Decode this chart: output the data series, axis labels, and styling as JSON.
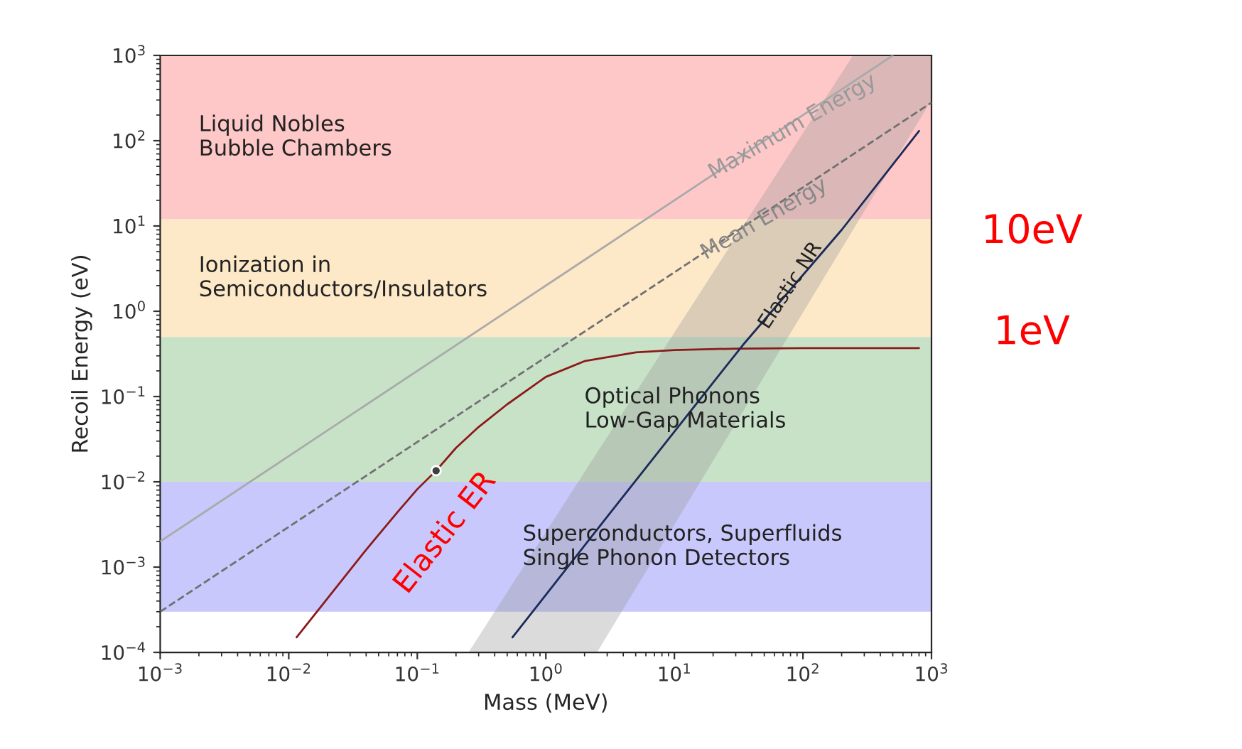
{
  "chart_data": {
    "type": "line",
    "xlabel": "Mass (MeV)",
    "ylabel": "Recoil Energy (eV)",
    "log": "xy",
    "xlim": [
      0.001,
      1000
    ],
    "ylim": [
      0.0001,
      1000
    ],
    "xticks": [
      {
        "value": 0.001,
        "label": "10$^{−3}$"
      },
      {
        "value": 0.01,
        "label": "10$^{−2}$"
      },
      {
        "value": 0.1,
        "label": "10$^{−1}$"
      },
      {
        "value": 1,
        "label": "10$^{0}$"
      },
      {
        "value": 10,
        "label": "10$^{1}$"
      },
      {
        "value": 100,
        "label": "10$^{2}$"
      },
      {
        "value": 1000,
        "label": "10$^{3}$"
      }
    ],
    "yticks": [
      {
        "value": 0.0001,
        "label": "10$^{−4}$"
      },
      {
        "value": 0.001,
        "label": "10$^{−3}$"
      },
      {
        "value": 0.01,
        "label": "10$^{−2}$"
      },
      {
        "value": 0.1,
        "label": "10$^{−1}$"
      },
      {
        "value": 1,
        "label": "10$^{0}$"
      },
      {
        "value": 10,
        "label": "10$^{1}$"
      },
      {
        "value": 100,
        "label": "10$^{2}$"
      },
      {
        "value": 1000,
        "label": "10$^{3}$"
      }
    ],
    "grid": false,
    "bands": [
      {
        "axis": "y",
        "from": 12,
        "to": 1000,
        "label": "Liquid Nobles\nBubble Chambers",
        "color": "#ffc8c8"
      },
      {
        "axis": "y",
        "from": 0.5,
        "to": 12,
        "label": "Ionization in\nSemiconductors/Insulators",
        "color": "#fde8c8"
      },
      {
        "axis": "y",
        "from": 0.01,
        "to": 0.5,
        "label": "Optical Phonons\nLow-Gap Materials",
        "color": "#c8e2c8"
      },
      {
        "axis": "y",
        "from": 0.0003,
        "to": 0.01,
        "label": "Superconductors, Superfluids\nSingle Phonon Detectors",
        "color": "#c8c8fc"
      }
    ],
    "series": [
      {
        "color": "#aaaaaa",
        "line_style": "solid",
        "x": [
          0.001,
          500
        ],
        "values": [
          0.002,
          1000
        ]
      },
      {
        "color": "#707070",
        "line_style": "dashed",
        "x": [
          0.001,
          1000
        ],
        "values": [
          0.0003,
          280
        ]
      },
      {
        "type": "area",
        "color": "#999999",
        "x": [
          0.25,
          2.5,
          245,
          1000
        ],
        "values": [
          null,
          null,
          null,
          null
        ],
        "lower": [
          0.0001,
          0.0001,
          9,
          300
        ],
        "upper": [
          0.0001,
          0.022,
          1000,
          1000
        ]
      },
      {
        "color": "#8b1a1a",
        "line_style": "solid",
        "x": [
          0.0115,
          0.02,
          0.04,
          0.07,
          0.1,
          0.14,
          0.2,
          0.3,
          0.5,
          1,
          2,
          5,
          10,
          30,
          100,
          800
        ],
        "values": [
          0.00015,
          0.00043,
          0.0016,
          0.0044,
          0.0082,
          0.0135,
          0.025,
          0.044,
          0.081,
          0.17,
          0.26,
          0.33,
          0.35,
          0.365,
          0.37,
          0.37
        ]
      },
      {
        "color": "#1a2a5a",
        "line_style": "solid",
        "x": [
          0.55,
          3,
          34,
          200,
          800
        ],
        "values": [
          0.00015,
          0.0039,
          0.4,
          9,
          130
        ]
      },
      {
        "type": "scatter",
        "color": "#404040",
        "marker": "circle",
        "x": [
          0.14
        ],
        "values": [
          0.0135
        ]
      }
    ],
    "annotations": [
      "Maximum Energy",
      {
        "text": "Mean Energy",
        "x": 50,
        "y": 12
      },
      {
        "text": "Elastic NR",
        "x": 80,
        "y": 2
      },
      "Elastic ER",
      "10eV",
      "1eV"
    ]
  }
}
